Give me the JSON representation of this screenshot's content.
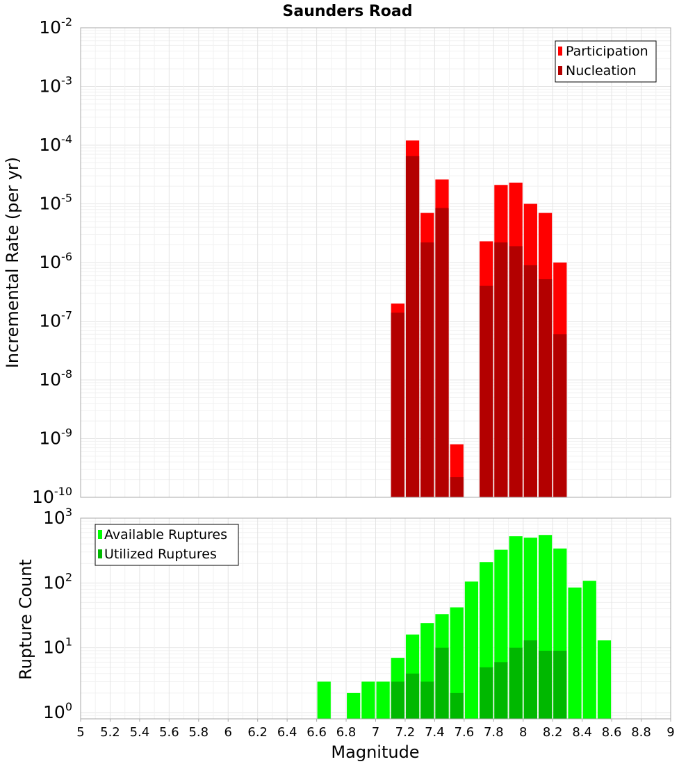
{
  "chart_data": [
    {
      "type": "bar",
      "title": "Saunders Road",
      "ylabel": "Incremental Rate (per yr)",
      "xlabel": "",
      "xlim": [
        5,
        9
      ],
      "ylim": [
        1e-10,
        0.01
      ],
      "yscale": "log",
      "grid": true,
      "bar_width": 0.1,
      "y_ticks": [
        {
          "base": "10",
          "exp": "-10",
          "value": 1e-10
        },
        {
          "base": "10",
          "exp": "-9",
          "value": 1e-09
        },
        {
          "base": "10",
          "exp": "-8",
          "value": 1e-08
        },
        {
          "base": "10",
          "exp": "-7",
          "value": 1e-07
        },
        {
          "base": "10",
          "exp": "-6",
          "value": 1e-06
        },
        {
          "base": "10",
          "exp": "-5",
          "value": 1e-05
        },
        {
          "base": "10",
          "exp": "-4",
          "value": 0.0001
        },
        {
          "base": "10",
          "exp": "-3",
          "value": 0.001
        },
        {
          "base": "10",
          "exp": "-2",
          "value": 0.01
        }
      ],
      "legend": {
        "position": "top-right",
        "entries": [
          "Participation",
          "Nucleation"
        ]
      },
      "series": [
        {
          "name": "Participation",
          "color": "#ff0000",
          "x": [
            7.15,
            7.25,
            7.35,
            7.45,
            7.55,
            7.75,
            7.85,
            7.95,
            8.05,
            8.15,
            8.25
          ],
          "values": [
            2e-07,
            0.00012,
            7e-06,
            2.6e-05,
            8e-10,
            2.3e-06,
            2.1e-05,
            2.3e-05,
            1e-05,
            7e-06,
            1e-06
          ]
        },
        {
          "name": "Nucleation",
          "color": "#b30000",
          "x": [
            7.15,
            7.25,
            7.35,
            7.45,
            7.55,
            7.75,
            7.85,
            7.95,
            8.05,
            8.15,
            8.25
          ],
          "values": [
            1.4e-07,
            6.5e-05,
            2.2e-06,
            8.5e-06,
            2.2e-10,
            4e-07,
            2.2e-06,
            1.9e-06,
            9e-07,
            5.2e-07,
            6e-08
          ]
        }
      ]
    },
    {
      "type": "bar",
      "title": "",
      "ylabel": "Rupture Count",
      "xlabel": "Magnitude",
      "xlim": [
        5,
        9
      ],
      "ylim": [
        0.8,
        1000
      ],
      "yscale": "log",
      "grid": true,
      "bar_width": 0.1,
      "x_ticks": [
        "5",
        "5.2",
        "5.4",
        "5.6",
        "5.8",
        "6",
        "6.2",
        "6.4",
        "6.6",
        "6.8",
        "7",
        "7.2",
        "7.4",
        "7.6",
        "7.8",
        "8",
        "8.2",
        "8.4",
        "8.6",
        "8.8",
        "9"
      ],
      "y_ticks": [
        {
          "base": "10",
          "exp": "0",
          "value": 1
        },
        {
          "base": "10",
          "exp": "1",
          "value": 10
        },
        {
          "base": "10",
          "exp": "2",
          "value": 100
        },
        {
          "base": "10",
          "exp": "3",
          "value": 1000
        }
      ],
      "legend": {
        "position": "top-left",
        "entries": [
          "Available Ruptures",
          "Utilized Ruptures"
        ]
      },
      "series": [
        {
          "name": "Available Ruptures",
          "color": "#00ff00",
          "x": [
            6.65,
            6.85,
            6.95,
            7.05,
            7.15,
            7.25,
            7.35,
            7.45,
            7.55,
            7.65,
            7.75,
            7.85,
            7.95,
            8.05,
            8.15,
            8.25,
            8.35,
            8.45,
            8.55
          ],
          "values": [
            3,
            2,
            3,
            3,
            7,
            16,
            24,
            33,
            42,
            105,
            210,
            325,
            525,
            500,
            550,
            340,
            85,
            108,
            13
          ]
        },
        {
          "name": "Utilized Ruptures",
          "color": "#00b800",
          "x": [
            7.15,
            7.25,
            7.35,
            7.45,
            7.55,
            7.75,
            7.85,
            7.95,
            8.05,
            8.15,
            8.25
          ],
          "values": [
            3,
            4,
            3,
            10,
            2,
            5,
            6,
            10,
            13,
            9,
            9
          ]
        }
      ]
    }
  ]
}
